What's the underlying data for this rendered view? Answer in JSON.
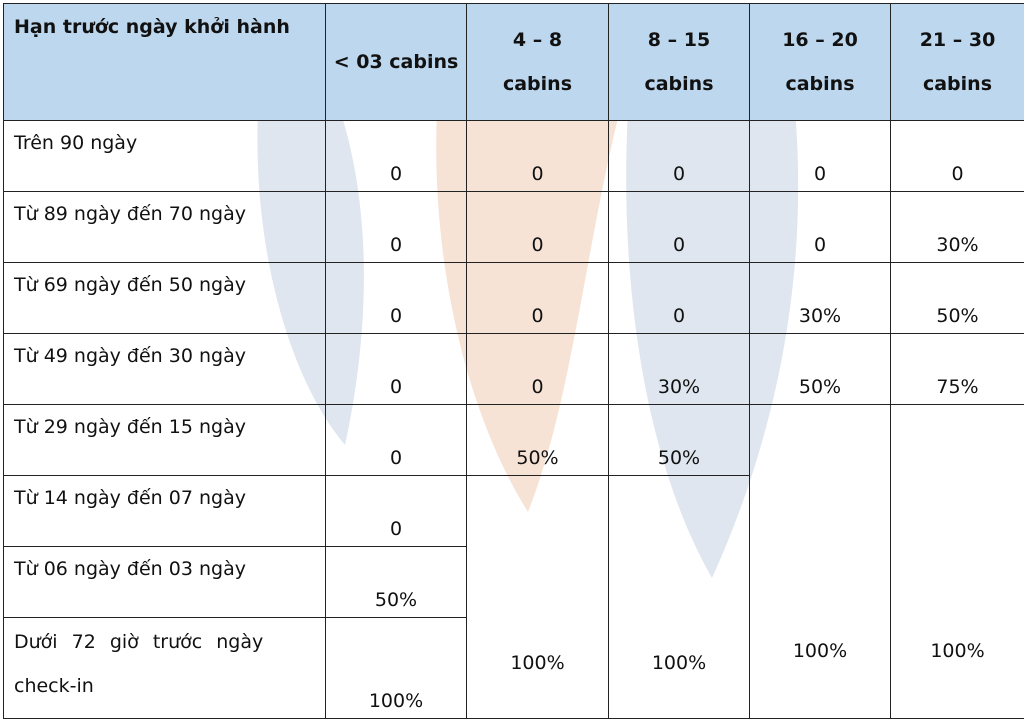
{
  "table": {
    "header": {
      "deadline": "Hạn trước ngày khởi hành",
      "col1": "< 03 cabins",
      "col2_line1": "4 – 8",
      "col2_line2": "cabins",
      "col3_line1": "8 – 15",
      "col3_line2": "cabins",
      "col4_line1": "16 – 20",
      "col4_line2": "cabins",
      "col5_line1": "21 – 30",
      "col5_line2": "cabins"
    },
    "rows": [
      {
        "label": "Trên 90 ngày",
        "c1": "0",
        "c2": "0",
        "c3": "0",
        "c4": "0",
        "c5": "0"
      },
      {
        "label": "Từ 89 ngày đến 70 ngày",
        "c1": "0",
        "c2": "0",
        "c3": "0",
        "c4": "0",
        "c5": "30%"
      },
      {
        "label": "Từ 69 ngày đến 50 ngày",
        "c1": "0",
        "c2": "0",
        "c3": "0",
        "c4": "30%",
        "c5": "50%"
      },
      {
        "label": "Từ 49 ngày đến 30 ngày",
        "c1": "0",
        "c2": "0",
        "c3": "30%",
        "c4": "50%",
        "c5": "75%"
      },
      {
        "label": "Từ 29 ngày đến 15 ngày",
        "c1": "0",
        "c2": "50%",
        "c3": "50%",
        "c4": "100%",
        "c5": "100%"
      },
      {
        "label": "Từ 14 ngày đến 07 ngày",
        "c1": "0",
        "c2": "100%",
        "c3": "100%"
      },
      {
        "label": "Từ 06 ngày đến 03 ngày",
        "c1": "50%"
      },
      {
        "label": "Dưới 72 giờ trước ngày check-in",
        "c1": "100%"
      }
    ]
  },
  "colors": {
    "header_bg": "#bdd7ee",
    "watermark_blue": "#dfe6f0",
    "watermark_orange": "#f7e3d6"
  }
}
